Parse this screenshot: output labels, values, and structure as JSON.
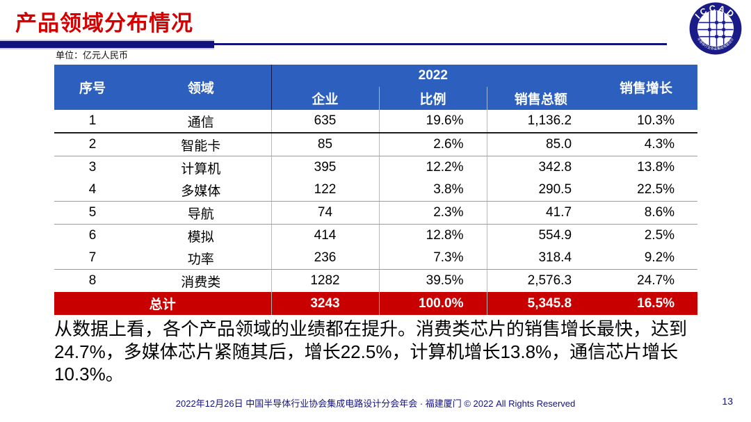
{
  "colors": {
    "title_red": "#D40000",
    "header_blue": "#2D5FBE",
    "total_red": "#C90000",
    "navy": "#12127E",
    "logo_navy": "#1B1B87"
  },
  "slide": {
    "title": "产品领域分布情况",
    "unit_note": "单位：亿元人民币",
    "footer": "2022年12月26日 中国半导体行业协会集成电路设计分会年会 · 福建厦门 © 2022 All Rights Reserved",
    "page_number": "13"
  },
  "logo": {
    "acronym": "ICCAD",
    "ring_text": "中国半导体行业协会集成电路设计分会"
  },
  "table": {
    "year_header": "2022",
    "col_headers": [
      "序号",
      "领域",
      "企业",
      "比例",
      "销售总额",
      "销售增长"
    ],
    "rows": [
      {
        "no": "1",
        "domain": "通信",
        "companies": "635",
        "share": "19.6%",
        "sales": "1,136.2",
        "growth": "10.3%"
      },
      {
        "no": "2",
        "domain": "智能卡",
        "companies": "85",
        "share": "2.6%",
        "sales": "85.0",
        "growth": "4.3%"
      },
      {
        "no": "3",
        "domain": "计算机",
        "companies": "395",
        "share": "12.2%",
        "sales": "342.8",
        "growth": "13.8%"
      },
      {
        "no": "4",
        "domain": "多媒体",
        "companies": "122",
        "share": "3.8%",
        "sales": "290.5",
        "growth": "22.5%"
      },
      {
        "no": "5",
        "domain": "导航",
        "companies": "74",
        "share": "2.3%",
        "sales": "41.7",
        "growth": "8.6%"
      },
      {
        "no": "6",
        "domain": "模拟",
        "companies": "414",
        "share": "12.8%",
        "sales": "554.9",
        "growth": "2.5%"
      },
      {
        "no": "7",
        "domain": "功率",
        "companies": "236",
        "share": "7.3%",
        "sales": "318.4",
        "growth": "9.2%"
      },
      {
        "no": "8",
        "domain": "消费类",
        "companies": "1282",
        "share": "39.5%",
        "sales": "2,576.3",
        "growth": "24.7%"
      }
    ],
    "total": {
      "label": "总计",
      "companies": "3243",
      "share": "100.0%",
      "sales": "5,345.8",
      "growth": "16.5%"
    }
  },
  "analysis": {
    "lines": [
      "从数据上看，各个产品领域的业绩都在提升。消费类芯片的销售增长最快，达到",
      "24.7%，多媒体芯片紧随其后，增长22.5%，计算机增长13.8%，通信芯片增长",
      "10.3%。"
    ]
  }
}
